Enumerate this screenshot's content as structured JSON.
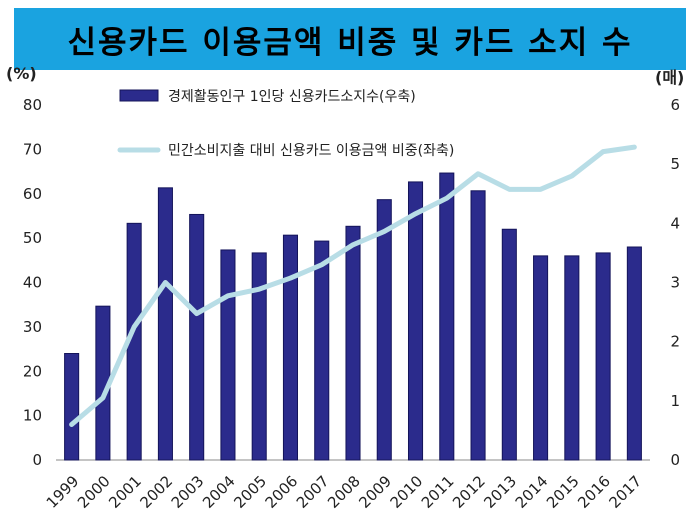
{
  "header": {
    "title": "신용카드 이용금액 비중 및 카드 소지 수"
  },
  "units": {
    "left": "(%)",
    "right": "(매)"
  },
  "colors": {
    "title_bg": "#1aa3e0",
    "bar": "#2b2b8c",
    "bar_edge": "#14145a",
    "line": "#b8dde6"
  },
  "chart_data": {
    "type": "bar+line",
    "title": "신용카드 이용금액 비중 및 카드 소지 수",
    "categories": [
      "1999",
      "2000",
      "2001",
      "2002",
      "2003",
      "2004",
      "2005",
      "2006",
      "2007",
      "2008",
      "2009",
      "2010",
      "2011",
      "2012",
      "2013",
      "2014",
      "2015",
      "2016",
      "2017"
    ],
    "series": [
      {
        "name": "경제활동인구 1인당 신용카드소지수(우축)",
        "type": "bar",
        "axis": "right",
        "values": [
          1.8,
          2.6,
          4.0,
          4.6,
          4.15,
          3.55,
          3.5,
          3.8,
          3.7,
          3.95,
          4.4,
          4.7,
          4.85,
          4.55,
          3.9,
          3.45,
          3.45,
          3.5,
          3.6
        ]
      },
      {
        "name": "민간소비지출 대비 신용카드 이용금액 비중(좌축)",
        "type": "line",
        "axis": "left",
        "values": [
          8,
          14,
          30,
          40,
          33,
          37,
          38.5,
          41,
          44,
          48.5,
          51.5,
          55.5,
          59,
          64.5,
          61,
          61,
          64,
          69.5,
          70.5
        ]
      }
    ],
    "y_left": {
      "min": 0,
      "max": 80,
      "ticks": [
        0,
        10,
        20,
        30,
        40,
        50,
        60,
        70,
        80
      ]
    },
    "y_right": {
      "min": 0,
      "max": 6,
      "ticks": [
        0,
        1,
        2,
        3,
        4,
        5,
        6
      ]
    },
    "grid": false,
    "legend": "top-left"
  }
}
